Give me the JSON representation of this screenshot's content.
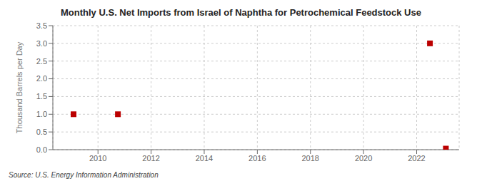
{
  "chart_data": {
    "type": "scatter",
    "title": "Monthly U.S. Net Imports from Israel of Naphtha for Petrochemical Feedstock Use",
    "ylabel": "Thousand Barrels per Day",
    "source": "Source: U.S. Energy Information Administration",
    "x": [
      2009.08,
      2010.75,
      2022.5,
      2023.1
    ],
    "values": [
      1.0,
      1.0,
      3.0,
      0.03
    ],
    "color": "#bb0000",
    "marker": "square",
    "xlim": [
      2008.3,
      2023.6
    ],
    "ylim": [
      0.0,
      3.5
    ],
    "xticks": [
      2010,
      2012,
      2014,
      2016,
      2018,
      2020,
      2022
    ],
    "yticks": [
      {
        "value": 0.0,
        "label": "0.0"
      },
      {
        "value": 0.5,
        "label": "0.5"
      },
      {
        "value": 1.0,
        "label": "1.0"
      },
      {
        "value": 1.5,
        "label": "1.5"
      },
      {
        "value": 2.0,
        "label": "2.0"
      },
      {
        "value": 2.5,
        "label": "2.5"
      },
      {
        "value": 3.0,
        "label": "3.0"
      },
      {
        "value": 3.5,
        "label": "3.5"
      }
    ],
    "grid": true
  }
}
